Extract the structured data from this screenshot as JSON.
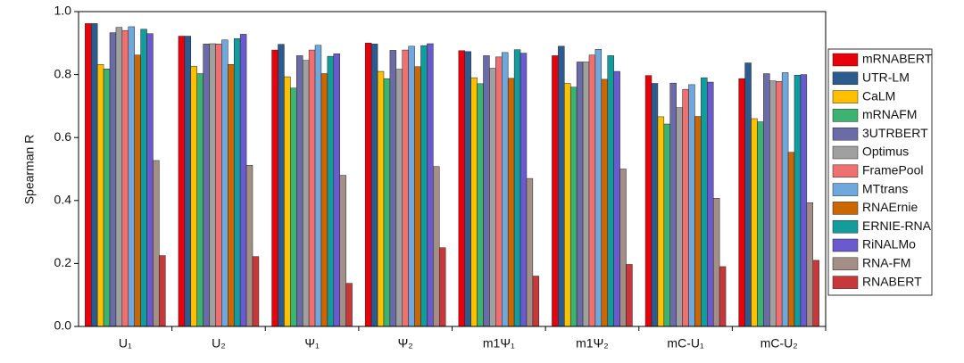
{
  "chart_data": {
    "type": "bar",
    "ylabel": "Spearman R",
    "categories": [
      "U₁",
      "U₂",
      "Ψ₁",
      "Ψ₂",
      "m1Ψ₁",
      "m1Ψ₂",
      "mC-U₁",
      "mC-U₂"
    ],
    "ylim": [
      0,
      1
    ],
    "yticks": [
      {
        "value": 0,
        "label": "0.0"
      },
      {
        "value": 0.2,
        "label": "0.2"
      },
      {
        "value": 0.4,
        "label": "0.4"
      },
      {
        "value": 0.6,
        "label": "0.6"
      },
      {
        "value": 0.8,
        "label": "0.8"
      },
      {
        "value": 1,
        "label": "1.0"
      }
    ],
    "series": [
      {
        "name": "mRNABERT",
        "color": "#e8000b",
        "values": [
          0.962,
          0.922,
          0.878,
          0.9,
          0.876,
          0.86,
          0.797,
          0.787
        ]
      },
      {
        "name": "UTR-LM",
        "color": "#2c5b8f",
        "values": [
          0.962,
          0.922,
          0.896,
          0.897,
          0.873,
          0.89,
          0.772,
          0.837
        ]
      },
      {
        "name": "CaLM",
        "color": "#ffc000",
        "values": [
          0.832,
          0.826,
          0.793,
          0.81,
          0.79,
          0.772,
          0.666,
          0.66
        ]
      },
      {
        "name": "mRNAFM",
        "color": "#3cb371",
        "values": [
          0.818,
          0.803,
          0.757,
          0.787,
          0.771,
          0.76,
          0.643,
          0.65
        ]
      },
      {
        "name": "3UTRBERT",
        "color": "#6b6ba8",
        "values": [
          0.933,
          0.897,
          0.86,
          0.877,
          0.86,
          0.84,
          0.773,
          0.803
        ]
      },
      {
        "name": "Optimus",
        "color": "#a0a0a0",
        "values": [
          0.95,
          0.898,
          0.845,
          0.817,
          0.82,
          0.84,
          0.695,
          0.78
        ]
      },
      {
        "name": "FramePool",
        "color": "#f07070",
        "values": [
          0.94,
          0.897,
          0.878,
          0.878,
          0.856,
          0.862,
          0.753,
          0.778
        ]
      },
      {
        "name": "MTtrans",
        "color": "#6fa8dc",
        "values": [
          0.952,
          0.91,
          0.893,
          0.89,
          0.87,
          0.88,
          0.768,
          0.806
        ]
      },
      {
        "name": "RNAErnie",
        "color": "#cc6600",
        "values": [
          0.862,
          0.832,
          0.803,
          0.825,
          0.788,
          0.785,
          0.667,
          0.553
        ]
      },
      {
        "name": "ERNIE-RNA",
        "color": "#129c9c",
        "values": [
          0.944,
          0.914,
          0.858,
          0.892,
          0.879,
          0.86,
          0.79,
          0.798
        ]
      },
      {
        "name": "RiNALMo",
        "color": "#6a5acd",
        "values": [
          0.93,
          0.928,
          0.866,
          0.898,
          0.868,
          0.81,
          0.776,
          0.8
        ]
      },
      {
        "name": "RNA-FM",
        "color": "#a38f86",
        "values": [
          0.527,
          0.512,
          0.48,
          0.508,
          0.47,
          0.5,
          0.407,
          0.393
        ]
      },
      {
        "name": "RNABERT",
        "color": "#c8373a",
        "values": [
          0.225,
          0.222,
          0.137,
          0.25,
          0.16,
          0.197,
          0.19,
          0.21
        ]
      }
    ]
  }
}
